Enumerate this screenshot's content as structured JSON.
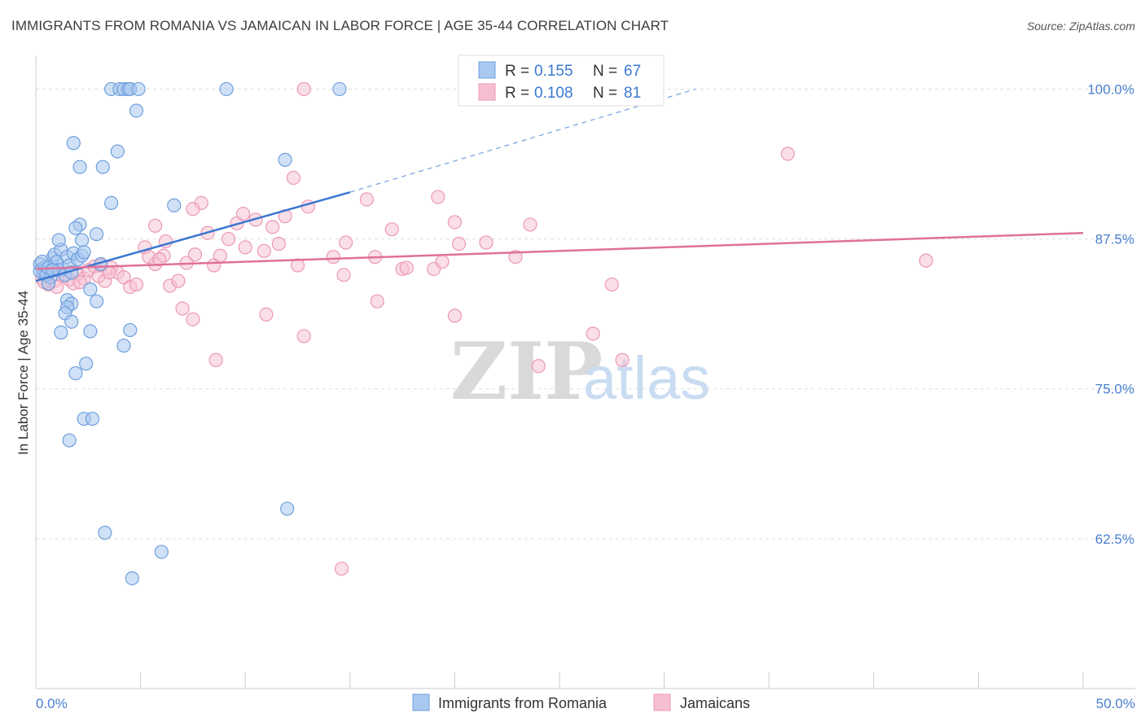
{
  "title": "IMMIGRANTS FROM ROMANIA VS JAMAICAN IN LABOR FORCE | AGE 35-44 CORRELATION CHART",
  "source": "Source: ZipAtlas.com",
  "watermark": {
    "zip": "ZIP",
    "atlas": "atlas"
  },
  "legend": {
    "r_label": "R =",
    "n_label": "N =",
    "rows": [
      {
        "r": "0.155",
        "n": "67"
      },
      {
        "r": "0.108",
        "n": "81"
      }
    ]
  },
  "colors": {
    "romania_fill": "#a9c8f0",
    "romania_stroke": "#6e9fdc",
    "romania_line": "#3b78d0",
    "jamaica_fill": "#f6bfd0",
    "jamaica_stroke": "#ec98b4",
    "jamaica_line": "#e0709a",
    "grid": "#dddddd",
    "tick_text": "#4a7fcf"
  },
  "chart_data": {
    "type": "scatter",
    "title": "IMMIGRANTS FROM ROMANIA VS JAMAICAN IN LABOR FORCE | AGE 35-44 CORRELATION CHART",
    "xlabel": "",
    "ylabel": "In Labor Force | Age 35-44",
    "xlim": [
      0,
      50
    ],
    "ylim": [
      50,
      102
    ],
    "x_tick_labels": [
      "0.0%",
      "50.0%"
    ],
    "y_ticks": [
      62.5,
      75.0,
      87.5,
      100.0
    ],
    "y_tick_labels": [
      "62.5%",
      "75.0%",
      "87.5%",
      "100.0%"
    ],
    "grid": "horizontal dashed",
    "legend_position": "top",
    "series": [
      {
        "name": "Immigrants from Romania",
        "r": 0.155,
        "n": 67,
        "trend": {
          "x": [
            0,
            15
          ],
          "y": [
            84.0,
            91.4
          ],
          "dashed_to": [
            31.5,
            100.0
          ]
        },
        "points": [
          [
            0.2,
            85.4
          ],
          [
            0.3,
            85.0
          ],
          [
            0.4,
            84.6
          ],
          [
            0.5,
            85.2
          ],
          [
            0.6,
            84.8
          ],
          [
            0.7,
            84.3
          ],
          [
            0.8,
            85.9
          ],
          [
            0.9,
            86.2
          ],
          [
            1.0,
            85.6
          ],
          [
            1.1,
            84.9
          ],
          [
            1.2,
            86.6
          ],
          [
            1.3,
            85.0
          ],
          [
            1.4,
            84.5
          ],
          [
            1.5,
            86.0
          ],
          [
            1.6,
            85.3
          ],
          [
            1.7,
            84.7
          ],
          [
            1.8,
            86.3
          ],
          [
            2.0,
            85.8
          ],
          [
            0.2,
            84.8
          ],
          [
            0.3,
            85.6
          ],
          [
            0.5,
            84.5
          ],
          [
            0.6,
            85.1
          ],
          [
            0.8,
            84.9
          ],
          [
            2.2,
            86.1
          ],
          [
            1.1,
            87.4
          ],
          [
            2.2,
            87.4
          ],
          [
            2.1,
            88.7
          ],
          [
            2.9,
            87.9
          ],
          [
            1.9,
            88.4
          ],
          [
            2.3,
            86.4
          ],
          [
            3.1,
            85.4
          ],
          [
            3.6,
            90.5
          ],
          [
            6.6,
            90.3
          ],
          [
            2.1,
            93.5
          ],
          [
            3.2,
            93.5
          ],
          [
            1.8,
            95.5
          ],
          [
            3.9,
            94.8
          ],
          [
            11.9,
            94.1
          ],
          [
            4.8,
            98.2
          ],
          [
            3.6,
            100.0
          ],
          [
            4.0,
            100.0
          ],
          [
            4.2,
            100.0
          ],
          [
            4.4,
            100.0
          ],
          [
            4.5,
            100.0
          ],
          [
            4.9,
            100.0
          ],
          [
            9.1,
            100.0
          ],
          [
            14.5,
            100.0
          ],
          [
            0.6,
            83.8
          ],
          [
            1.5,
            82.4
          ],
          [
            1.7,
            82.1
          ],
          [
            1.5,
            81.8
          ],
          [
            1.4,
            81.3
          ],
          [
            1.7,
            80.6
          ],
          [
            1.2,
            79.7
          ],
          [
            2.6,
            79.8
          ],
          [
            4.5,
            79.9
          ],
          [
            4.2,
            78.6
          ],
          [
            2.4,
            77.1
          ],
          [
            1.9,
            76.3
          ],
          [
            2.3,
            72.5
          ],
          [
            2.7,
            72.5
          ],
          [
            1.6,
            70.7
          ],
          [
            2.9,
            82.3
          ],
          [
            2.6,
            83.3
          ],
          [
            12.0,
            65.0
          ],
          [
            3.3,
            63.0
          ],
          [
            6.0,
            61.4
          ],
          [
            4.6,
            59.2
          ]
        ]
      },
      {
        "name": "Jamaicans",
        "r": 0.108,
        "n": 81,
        "trend": {
          "x": [
            0,
            50
          ],
          "y": [
            85.0,
            88.0
          ]
        },
        "points": [
          [
            0.3,
            84.2
          ],
          [
            0.6,
            83.7
          ],
          [
            0.9,
            84.0
          ],
          [
            1.3,
            84.4
          ],
          [
            1.6,
            84.1
          ],
          [
            1.8,
            83.8
          ],
          [
            2.0,
            84.6
          ],
          [
            2.3,
            84.2
          ],
          [
            2.5,
            84.9
          ],
          [
            2.8,
            85.2
          ],
          [
            3.0,
            84.4
          ],
          [
            3.3,
            84.0
          ],
          [
            3.6,
            85.1
          ],
          [
            3.9,
            84.7
          ],
          [
            4.2,
            84.3
          ],
          [
            4.5,
            83.5
          ],
          [
            4.8,
            83.7
          ],
          [
            5.2,
            86.8
          ],
          [
            5.4,
            86.0
          ],
          [
            5.7,
            85.4
          ],
          [
            6.1,
            86.1
          ],
          [
            6.4,
            83.6
          ],
          [
            6.8,
            84.0
          ],
          [
            7.2,
            85.5
          ],
          [
            7.6,
            86.2
          ],
          [
            7.9,
            90.5
          ],
          [
            8.2,
            88.0
          ],
          [
            8.5,
            85.3
          ],
          [
            8.8,
            86.1
          ],
          [
            9.2,
            87.5
          ],
          [
            9.6,
            88.8
          ],
          [
            10.0,
            86.8
          ],
          [
            10.5,
            89.1
          ],
          [
            10.9,
            86.5
          ],
          [
            11.3,
            88.5
          ],
          [
            11.6,
            87.1
          ],
          [
            11.9,
            89.4
          ],
          [
            12.3,
            92.6
          ],
          [
            13.0,
            90.2
          ],
          [
            14.2,
            86.0
          ],
          [
            14.8,
            87.2
          ],
          [
            15.8,
            90.8
          ],
          [
            17.0,
            88.3
          ],
          [
            17.5,
            85.0
          ],
          [
            17.7,
            85.1
          ],
          [
            19.0,
            85.0
          ],
          [
            19.2,
            91.0
          ],
          [
            19.4,
            85.6
          ],
          [
            20.0,
            88.9
          ],
          [
            20.2,
            87.1
          ],
          [
            21.5,
            87.2
          ],
          [
            22.9,
            86.0
          ],
          [
            23.6,
            88.7
          ],
          [
            3.1,
            85.3
          ],
          [
            5.7,
            88.6
          ],
          [
            6.2,
            87.3
          ],
          [
            7.5,
            90.0
          ],
          [
            9.9,
            89.6
          ],
          [
            12.5,
            85.3
          ],
          [
            16.2,
            86.0
          ],
          [
            20.0,
            81.1
          ],
          [
            14.7,
            84.5
          ],
          [
            11.0,
            81.2
          ],
          [
            7.0,
            81.7
          ],
          [
            7.5,
            80.8
          ],
          [
            12.8,
            79.4
          ],
          [
            16.3,
            82.3
          ],
          [
            8.6,
            77.4
          ],
          [
            26.6,
            79.6
          ],
          [
            24.0,
            76.9
          ],
          [
            28.0,
            77.4
          ],
          [
            27.5,
            83.7
          ],
          [
            35.9,
            94.6
          ],
          [
            42.5,
            85.7
          ],
          [
            12.8,
            100.0
          ],
          [
            14.6,
            60.0
          ],
          [
            0.4,
            83.9
          ],
          [
            1.0,
            83.5
          ],
          [
            2.1,
            83.9
          ],
          [
            3.5,
            84.7
          ],
          [
            5.9,
            85.8
          ]
        ]
      }
    ]
  },
  "bottom_legend": {
    "romania": "Immigrants from Romania",
    "jamaica": "Jamaicans"
  }
}
